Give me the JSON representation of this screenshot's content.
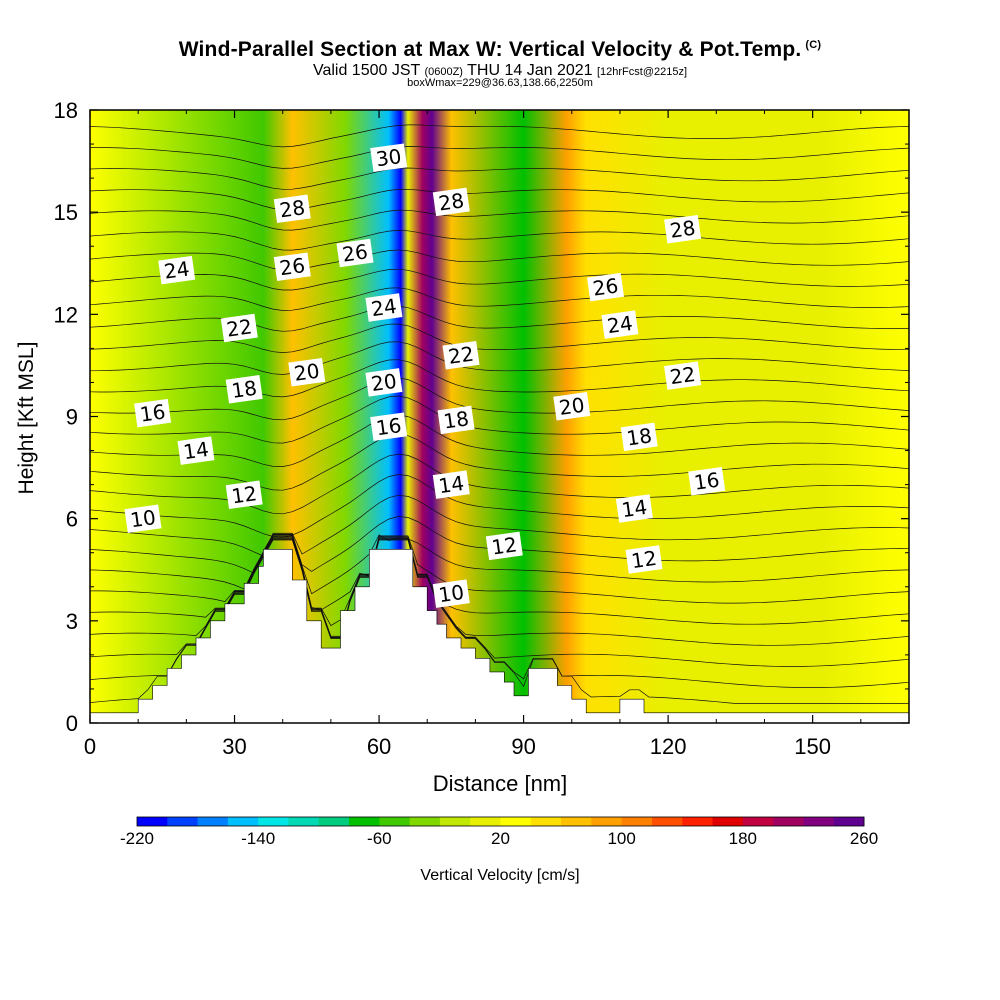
{
  "header": {
    "title": "Wind-Parallel Section at Max W: Vertical Velocity & Pot.Temp.",
    "copyright": "(C)",
    "valid_a": "Valid 1500 JST",
    "valid_utc": "(0600Z)",
    "valid_b": "THU 14 Jan 2021",
    "forecast": "[12hrFcst@2215z]",
    "box_info": "boxWmax=229@36.63,138.66,2250m"
  },
  "chart_data": {
    "type": "heatmap",
    "xlabel": "Distance [nm]",
    "ylabel": "Height [Kft MSL]",
    "xlim": [
      0,
      170
    ],
    "ylim": [
      0,
      18
    ],
    "xticks": [
      0,
      30,
      60,
      90,
      120,
      150
    ],
    "yticks": [
      0,
      3,
      6,
      9,
      12,
      15,
      18
    ],
    "colorbar": {
      "label": "Vertical Velocity [cm/s]",
      "min": -220,
      "max": 260,
      "step": 20,
      "tick_labels": [
        -220,
        -140,
        -60,
        20,
        100,
        180,
        260
      ],
      "colors": [
        "#0000ff",
        "#0040ff",
        "#0080ff",
        "#00bfff",
        "#00e5e5",
        "#00d9b3",
        "#00cc80",
        "#00c000",
        "#40c800",
        "#80d800",
        "#c0e800",
        "#e8f000",
        "#ffff00",
        "#ffe000",
        "#ffc000",
        "#ffa000",
        "#ff8000",
        "#ff5000",
        "#ff2000",
        "#e00000",
        "#c00040",
        "#a00060",
        "#800080",
        "#600090"
      ]
    },
    "vertical_velocity_field": {
      "background": 20,
      "features": [
        {
          "x": 36,
          "value": -60,
          "description": "weak sink"
        },
        {
          "x": 42,
          "value": 60
        },
        {
          "x": 53,
          "value": -40
        },
        {
          "x": 62,
          "value": -160
        },
        {
          "x": 64.5,
          "value": -220
        },
        {
          "x": 66,
          "value": 0
        },
        {
          "x": 69,
          "value": 200
        },
        {
          "x": 71,
          "value": 240
        },
        {
          "x": 75,
          "value": 60
        },
        {
          "x": 90,
          "value": -80
        },
        {
          "x": 99,
          "value": 80
        },
        {
          "x": 103,
          "value": 40
        },
        {
          "x": 120,
          "value": 0
        },
        {
          "x": 152,
          "value": 0
        }
      ]
    },
    "theta_contours": [
      {
        "level": 10,
        "label_at": [
          [
            11,
            6.0
          ],
          [
            75,
            3.8
          ]
        ]
      },
      {
        "level": 12,
        "label_at": [
          [
            32,
            6.7
          ],
          [
            86,
            5.2
          ],
          [
            115,
            4.8
          ]
        ]
      },
      {
        "level": 14,
        "label_at": [
          [
            22,
            8.0
          ],
          [
            75,
            7.0
          ],
          [
            113,
            6.3
          ]
        ]
      },
      {
        "level": 16,
        "label_at": [
          [
            13,
            9.1
          ],
          [
            62,
            8.7
          ],
          [
            128,
            7.1
          ]
        ]
      },
      {
        "level": 18,
        "label_at": [
          [
            32,
            9.8
          ],
          [
            76,
            8.9
          ],
          [
            114,
            8.4
          ]
        ]
      },
      {
        "level": 20,
        "label_at": [
          [
            45,
            10.3
          ],
          [
            61,
            10.0
          ],
          [
            100,
            9.3
          ]
        ]
      },
      {
        "level": 22,
        "label_at": [
          [
            31,
            11.6
          ],
          [
            77,
            10.8
          ],
          [
            123,
            10.2
          ]
        ]
      },
      {
        "level": 24,
        "label_at": [
          [
            18,
            13.3
          ],
          [
            61,
            12.2
          ],
          [
            110,
            11.7
          ]
        ]
      },
      {
        "level": 26,
        "label_at": [
          [
            42,
            13.4
          ],
          [
            55,
            13.8
          ],
          [
            107,
            12.8
          ]
        ]
      },
      {
        "level": 28,
        "label_at": [
          [
            42,
            15.1
          ],
          [
            75,
            15.3
          ],
          [
            123,
            14.5
          ]
        ]
      },
      {
        "level": 30,
        "label_at": [
          [
            62,
            16.6
          ]
        ]
      }
    ],
    "terrain": [
      [
        0,
        0.3
      ],
      [
        10,
        0.3
      ],
      [
        10,
        0.7
      ],
      [
        13,
        0.7
      ],
      [
        13,
        1.1
      ],
      [
        16,
        1.1
      ],
      [
        16,
        1.6
      ],
      [
        19,
        1.6
      ],
      [
        19,
        2.0
      ],
      [
        22,
        2.0
      ],
      [
        22,
        2.5
      ],
      [
        25,
        2.5
      ],
      [
        25,
        3.0
      ],
      [
        28,
        3.0
      ],
      [
        28,
        3.5
      ],
      [
        32,
        3.5
      ],
      [
        32,
        4.1
      ],
      [
        35,
        4.1
      ],
      [
        35,
        4.6
      ],
      [
        36,
        4.6
      ],
      [
        36,
        5.1
      ],
      [
        42,
        5.1
      ],
      [
        42,
        4.2
      ],
      [
        45,
        4.2
      ],
      [
        45,
        3.0
      ],
      [
        48,
        3.0
      ],
      [
        48,
        2.2
      ],
      [
        52,
        2.2
      ],
      [
        52,
        3.3
      ],
      [
        55,
        3.3
      ],
      [
        55,
        4.0
      ],
      [
        58,
        4.0
      ],
      [
        58,
        5.1
      ],
      [
        67,
        5.1
      ],
      [
        67,
        4.0
      ],
      [
        70,
        4.0
      ],
      [
        70,
        3.3
      ],
      [
        72,
        3.3
      ],
      [
        72,
        2.9
      ],
      [
        74,
        2.9
      ],
      [
        74,
        2.5
      ],
      [
        77,
        2.5
      ],
      [
        77,
        2.2
      ],
      [
        80,
        2.2
      ],
      [
        80,
        1.9
      ],
      [
        83,
        1.9
      ],
      [
        83,
        1.5
      ],
      [
        86,
        1.5
      ],
      [
        86,
        1.2
      ],
      [
        88,
        1.2
      ],
      [
        88,
        0.8
      ],
      [
        91,
        0.8
      ],
      [
        91,
        1.6
      ],
      [
        97,
        1.6
      ],
      [
        97,
        1.1
      ],
      [
        100,
        1.1
      ],
      [
        100,
        0.7
      ],
      [
        103,
        0.7
      ],
      [
        103,
        0.3
      ],
      [
        110,
        0.3
      ],
      [
        110,
        0.7
      ],
      [
        115,
        0.7
      ],
      [
        115,
        0.3
      ],
      [
        170,
        0.3
      ],
      [
        170,
        0
      ]
    ]
  }
}
